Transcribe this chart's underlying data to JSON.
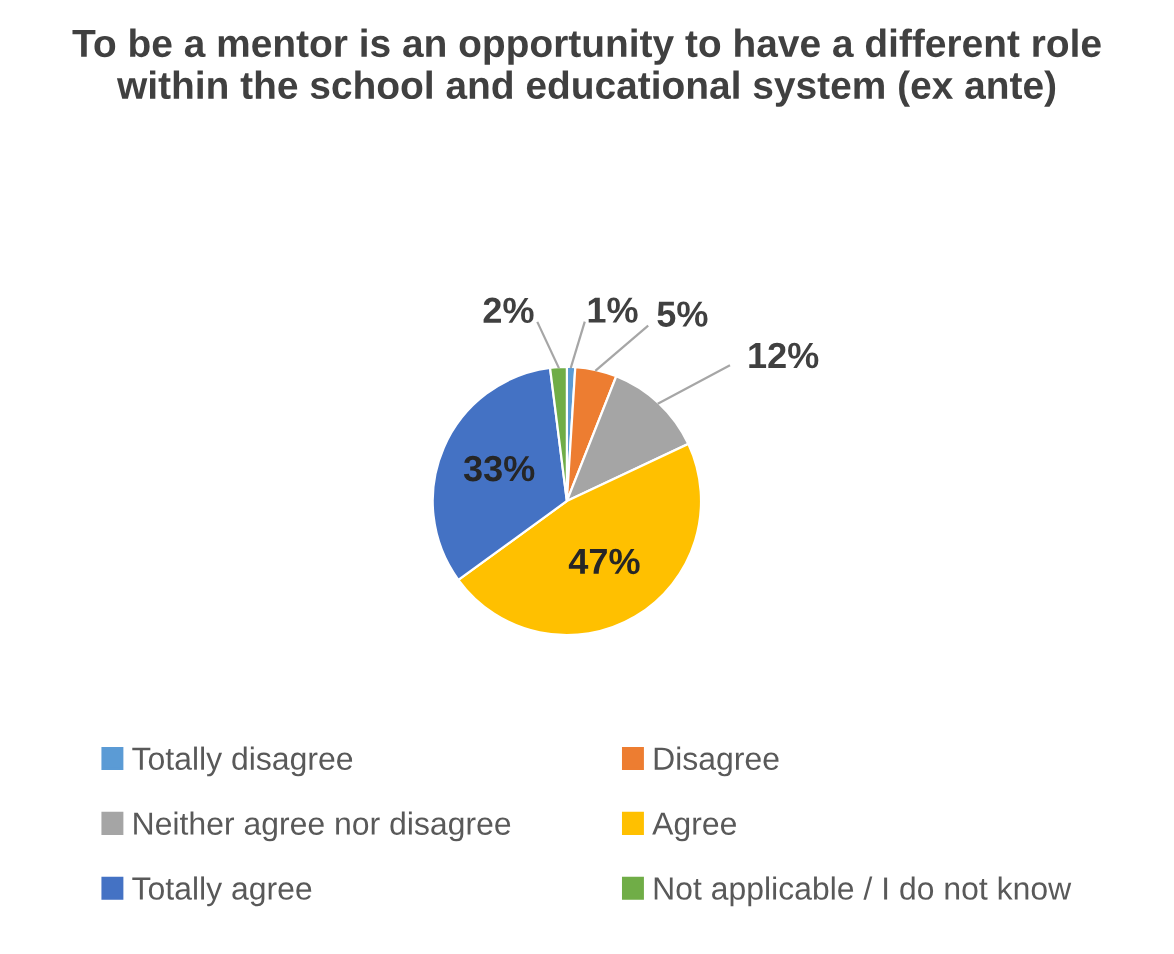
{
  "chart_data": {
    "type": "pie",
    "title": "To be a mentor is an opportunity to have a different role within the school and educational system (ex ante)",
    "categories": [
      "Totally disagree",
      "Disagree",
      "Neither agree nor disagree",
      "Agree",
      "Totally agree",
      "Not applicable / I do not know"
    ],
    "values": [
      1,
      5,
      12,
      47,
      33,
      2
    ],
    "colors": [
      "#5b9bd5",
      "#ed7d31",
      "#a5a5a5",
      "#ffc000",
      "#4472c4",
      "#70ad47"
    ],
    "value_labels": [
      "1%",
      "5%",
      "12%",
      "47%",
      "33%",
      "2%"
    ],
    "legend": "bottom"
  }
}
